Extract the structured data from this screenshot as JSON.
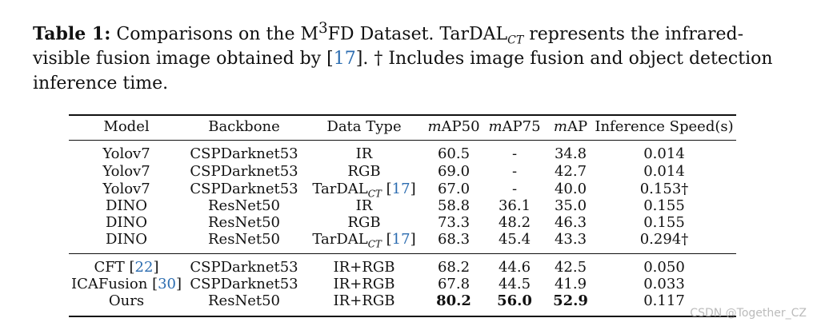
{
  "caption": {
    "label": "Table 1:",
    "text_1": "Comparisons on the M",
    "sup": "3",
    "text_2": "FD Dataset. TarDAL",
    "sub": "CT",
    "text_3": " represents the infrared-visible fusion image obtained by [",
    "cite": "17",
    "text_4": "]. † Includes image fusion and object detection inference time."
  },
  "table": {
    "headers": [
      "Model",
      "Backbone",
      "Data Type",
      "mAP50",
      "mAP75",
      "mAP",
      "Inference Speed(s)"
    ],
    "group1": [
      [
        "Yolov7",
        "CSPDarknet53",
        "IR",
        "60.5",
        "-",
        "34.8",
        "0.014"
      ],
      [
        "Yolov7",
        "CSPDarknet53",
        "RGB",
        "69.0",
        "-",
        "42.7",
        "0.014"
      ],
      [
        "Yolov7",
        "CSPDarknet53",
        "TarDAL_CT [17]",
        "67.0",
        "-",
        "40.0",
        "0.153†"
      ],
      [
        "DINO",
        "ResNet50",
        "IR",
        "58.8",
        "36.1",
        "35.0",
        "0.155"
      ],
      [
        "DINO",
        "ResNet50",
        "RGB",
        "73.3",
        "48.2",
        "46.3",
        "0.155"
      ],
      [
        "DINO",
        "ResNet50",
        "TarDAL_CT [17]",
        "68.3",
        "45.4",
        "43.3",
        "0.294†"
      ]
    ],
    "group2": [
      [
        "CFT [22]",
        "CSPDarknet53",
        "IR+RGB",
        "68.2",
        "44.6",
        "42.5",
        "0.050"
      ],
      [
        "ICAFusion [30]",
        "CSPDarknet53",
        "IR+RGB",
        "67.8",
        "44.5",
        "41.9",
        "0.033"
      ],
      [
        "Ours",
        "ResNet50",
        "IR+RGB",
        "80.2",
        "56.0",
        "52.9",
        "0.117"
      ]
    ]
  },
  "watermark": "CSDN @Together_CZ"
}
